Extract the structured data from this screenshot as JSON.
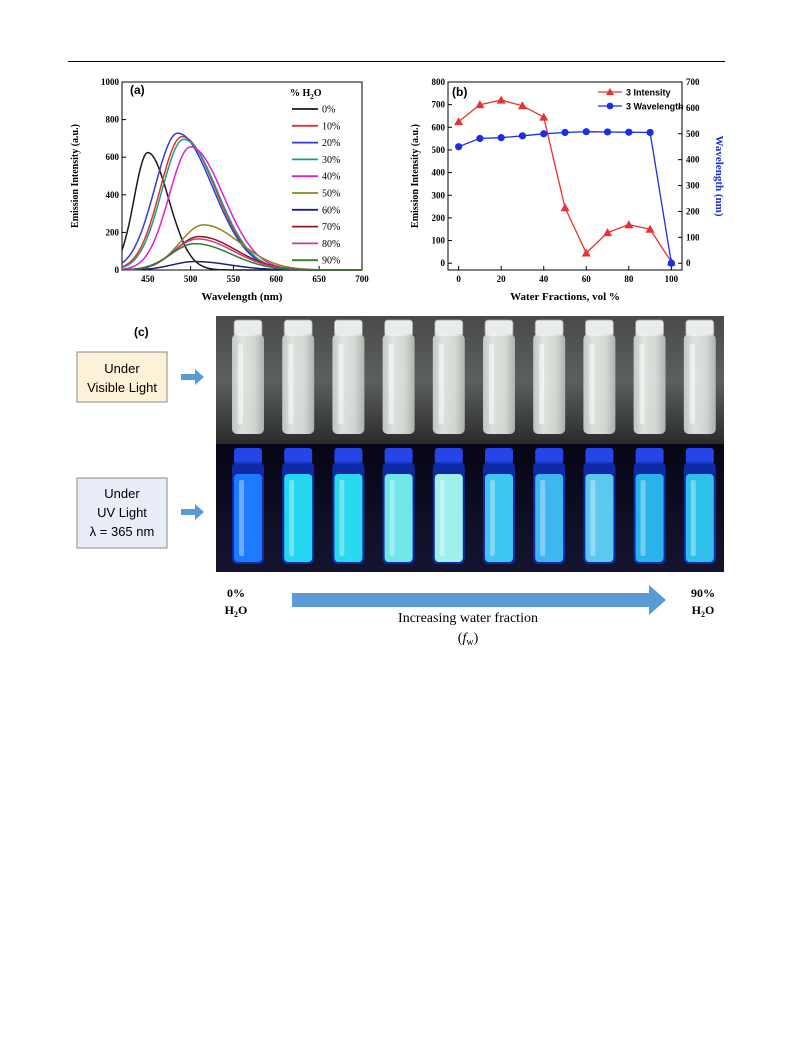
{
  "panel_c": {
    "label": "(c)",
    "visible_box": [
      "Under",
      "Visible Light"
    ],
    "uv_box": [
      "Under",
      "UV Light",
      "λ = 365 nm"
    ],
    "left_caption": {
      "pct": "0%",
      "h2o": "H₂O"
    },
    "right_caption": {
      "pct": "90%",
      "h2o": "H₂O"
    },
    "arrow_text": "Increasing water fraction",
    "fw_symbol": "(fw)",
    "colors": {
      "label_box_visible": "#fdf2d8",
      "label_box_uv": "#e8edf7",
      "box_border": "#8a8a8a",
      "arrow": "#5b9bd5",
      "uv_background": "#0b0b1e",
      "visible_background": "#3a3a3a"
    },
    "vials_uv_glow": [
      "#1e7bff",
      "#25d6f0",
      "#29d9ee",
      "#6fe6e8",
      "#9ff0ec",
      "#3dc6f0",
      "#40b6f0",
      "#5cc8f0",
      "#2ab3ea",
      "#2ec0e8"
    ]
  },
  "chart_data": [
    {
      "type": "line",
      "panel_label": "(a)",
      "xlabel": "Wavelength (nm)",
      "ylabel": "Emission Intensity (a.u.)",
      "xlim": [
        420,
        700
      ],
      "ylim": [
        0,
        1000
      ],
      "xticks": [
        450,
        500,
        550,
        600,
        650,
        700
      ],
      "yticks": [
        0,
        200,
        400,
        600,
        800,
        1000
      ],
      "legend_title": "% H2O",
      "legend_position": "top-right",
      "series": [
        {
          "name": "0%",
          "color": "#1a1a1a",
          "peak_x": 450,
          "peak_y": 625,
          "width": 30
        },
        {
          "name": "10%",
          "color": "#e03131",
          "peak_x": 490,
          "peak_y": 710,
          "width": 48
        },
        {
          "name": "20%",
          "color": "#2b3fd6",
          "peak_x": 485,
          "peak_y": 728,
          "width": 50
        },
        {
          "name": "30%",
          "color": "#1a9e86",
          "peak_x": 492,
          "peak_y": 695,
          "width": 48
        },
        {
          "name": "40%",
          "color": "#e020d0",
          "peak_x": 500,
          "peak_y": 655,
          "width": 47
        },
        {
          "name": "50%",
          "color": "#8a8a1a",
          "peak_x": 515,
          "peak_y": 240,
          "width": 52
        },
        {
          "name": "60%",
          "color": "#1a237e",
          "peak_x": 505,
          "peak_y": 45,
          "width": 50
        },
        {
          "name": "70%",
          "color": "#8b1a1a",
          "peak_x": 510,
          "peak_y": 178,
          "width": 52
        },
        {
          "name": "80%",
          "color": "#d23a8a",
          "peak_x": 508,
          "peak_y": 165,
          "width": 52
        },
        {
          "name": "90%",
          "color": "#2e7d32",
          "peak_x": 505,
          "peak_y": 140,
          "width": 52
        }
      ]
    },
    {
      "type": "line",
      "panel_label": "(b)",
      "xlabel": "Water Fractions, vol %",
      "ylabel": "Emission Intensity (a.u.)",
      "y2label": "Wavelength (nm)",
      "xlim": [
        -5,
        105
      ],
      "ylim": [
        -30,
        800
      ],
      "y2lim": [
        -26.25,
        700
      ],
      "xticks": [
        0,
        20,
        40,
        60,
        80,
        100
      ],
      "yticks": [
        0,
        100,
        200,
        300,
        400,
        500,
        600,
        700,
        800
      ],
      "y2ticks": [
        0,
        100,
        200,
        300,
        400,
        500,
        600,
        700
      ],
      "legend_position": "top-right",
      "x": [
        0,
        10,
        20,
        30,
        40,
        50,
        60,
        70,
        80,
        90,
        100
      ],
      "series": [
        {
          "name": "3 Intensity",
          "axis": "left",
          "color": "#e8322f",
          "marker": "triangle",
          "values": [
            625,
            700,
            720,
            695,
            645,
            245,
            45,
            135,
            170,
            150,
            5
          ]
        },
        {
          "name": "3 Wavelength",
          "axis": "right",
          "color": "#1a2fe0",
          "marker": "circle",
          "values": [
            450,
            482,
            485,
            492,
            500,
            505,
            508,
            507,
            506,
            505,
            0
          ]
        }
      ]
    }
  ]
}
